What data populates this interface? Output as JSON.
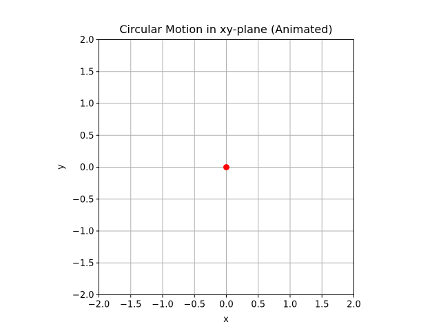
{
  "chart_data": {
    "type": "scatter",
    "title": "Circular Motion in xy-plane (Animated)",
    "xlabel": "x",
    "ylabel": "y",
    "xlim": [
      -2.0,
      2.0
    ],
    "ylim": [
      -2.0,
      2.0
    ],
    "x_ticks": [
      -2.0,
      -1.5,
      -1.0,
      -0.5,
      0.0,
      0.5,
      1.0,
      1.5,
      2.0
    ],
    "y_ticks": [
      -2.0,
      -1.5,
      -1.0,
      -0.5,
      0.0,
      0.5,
      1.0,
      1.5,
      2.0
    ],
    "x_tick_labels": [
      "−2.0",
      "−1.5",
      "−1.0",
      "−0.5",
      "0.0",
      "0.5",
      "1.0",
      "1.5",
      "2.0"
    ],
    "y_tick_labels": [
      "−2.0",
      "−1.5",
      "−1.0",
      "−0.5",
      "0.0",
      "0.5",
      "1.0",
      "1.5",
      "2.0"
    ],
    "grid": true,
    "aspect": "equal",
    "series": [
      {
        "x": [
          0.0
        ],
        "y": [
          0.0
        ],
        "color": "#ff0000",
        "marker": "circle"
      }
    ]
  }
}
